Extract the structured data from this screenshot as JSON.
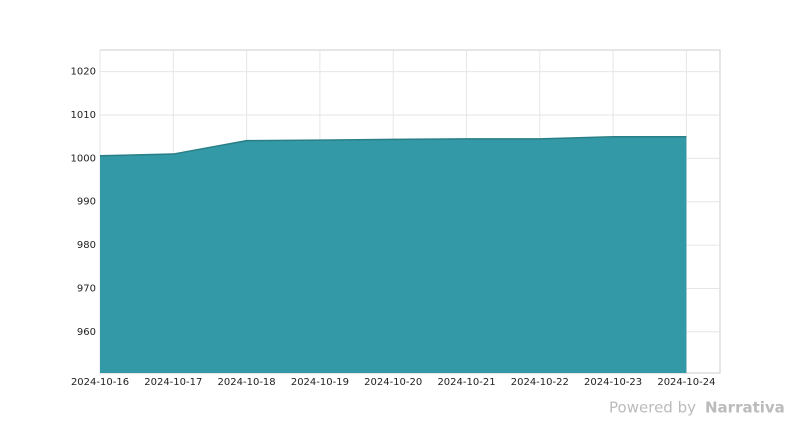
{
  "chart_data": {
    "type": "area",
    "x": [
      "2024-10-16",
      "2024-10-17",
      "2024-10-18",
      "2024-10-19",
      "2024-10-20",
      "2024-10-21",
      "2024-10-22",
      "2024-10-23",
      "2024-10-24"
    ],
    "values": [
      1000.6,
      1001,
      1004.1,
      1004.2,
      1004.4,
      1004.5,
      1004.5,
      1005,
      1005
    ],
    "color": "#3399a6",
    "line_color": "#2a7f86",
    "xlim": [
      "2024-10-16",
      "2024-10-24T11:00"
    ],
    "xticks": [
      "2024-10-16",
      "2024-10-17",
      "2024-10-18",
      "2024-10-19",
      "2024-10-20",
      "2024-10-21",
      "2024-10-22",
      "2024-10-23",
      "2024-10-24"
    ],
    "ylim": [
      950.5,
      1025
    ],
    "yticks": [
      960,
      970,
      980,
      990,
      1000,
      1010,
      1020
    ],
    "grid": true
  },
  "footer": {
    "prefix": "Powered by",
    "brand": "Narrativa"
  }
}
